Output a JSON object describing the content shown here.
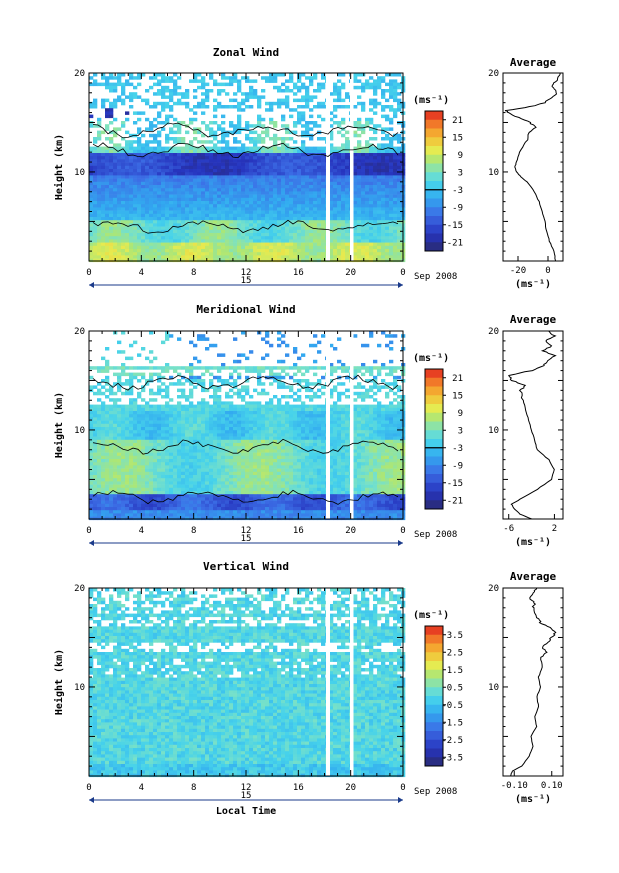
{
  "chart_data": [
    {
      "type": "heatmap",
      "title": "Zonal Wind",
      "xlabel": "",
      "ylabel": "Height (km)",
      "x_ticks": [
        "0",
        "4",
        "8",
        "12",
        "16",
        "20",
        "0"
      ],
      "y_ticks": [
        "10",
        "20"
      ],
      "xlim": [
        0,
        24
      ],
      "ylim": [
        1,
        20
      ],
      "date_label": "15",
      "month_label": "Sep 2008",
      "colorbar": {
        "unit": "(ms⁻¹)",
        "ticks": [
          "21",
          "15",
          "9",
          "3",
          "-3",
          "-9",
          "-15",
          "-21"
        ],
        "range": [
          -24,
          24
        ]
      },
      "zero_contour": true,
      "average": {
        "title": "Average",
        "x_ticks": [
          "-20",
          "0"
        ],
        "xlim": [
          -30,
          10
        ],
        "xlabel": "(ms⁻¹)",
        "y_ticks": [
          "10",
          "20"
        ],
        "profile": [
          [
            1,
            5
          ],
          [
            2,
            4
          ],
          [
            3,
            1
          ],
          [
            4,
            -1
          ],
          [
            5,
            -2
          ],
          [
            6,
            -4
          ],
          [
            7,
            -6
          ],
          [
            8,
            -9
          ],
          [
            9,
            -14
          ],
          [
            9.5,
            -18
          ],
          [
            10,
            -21
          ],
          [
            10.5,
            -22
          ],
          [
            11,
            -21
          ],
          [
            12,
            -19
          ],
          [
            13,
            -15
          ],
          [
            14,
            -12
          ],
          [
            14.5,
            -8
          ],
          [
            15,
            -12
          ],
          [
            15.5,
            -20
          ],
          [
            16,
            -26
          ],
          [
            16.2,
            -28
          ],
          [
            16.6,
            -12
          ],
          [
            17,
            -2
          ],
          [
            17.5,
            2
          ],
          [
            18,
            6
          ],
          [
            18.5,
            3
          ],
          [
            19,
            4
          ],
          [
            19.5,
            7
          ],
          [
            20,
            8
          ]
        ]
      }
    },
    {
      "type": "heatmap",
      "title": "Meridional Wind",
      "xlabel": "",
      "ylabel": "Height (km)",
      "x_ticks": [
        "0",
        "4",
        "8",
        "12",
        "16",
        "20",
        "0"
      ],
      "y_ticks": [
        "10",
        "20"
      ],
      "xlim": [
        0,
        24
      ],
      "ylim": [
        1,
        20
      ],
      "date_label": "15",
      "month_label": "Sep 2008",
      "colorbar": {
        "unit": "(ms⁻¹)",
        "ticks": [
          "21",
          "15",
          "9",
          "3",
          "-3",
          "-9",
          "-15",
          "-21"
        ],
        "range": [
          -24,
          24
        ]
      },
      "zero_contour": true,
      "average": {
        "title": "Average",
        "x_ticks": [
          "-6",
          "2"
        ],
        "xlim": [
          -7,
          3.5
        ],
        "xlabel": "(ms⁻¹)",
        "y_ticks": [
          "10",
          "20"
        ],
        "profile": [
          [
            1,
            -2
          ],
          [
            1.5,
            -4
          ],
          [
            2,
            -5
          ],
          [
            2.5,
            -5.5
          ],
          [
            3,
            -4
          ],
          [
            4,
            -1
          ],
          [
            5,
            1.5
          ],
          [
            6,
            2
          ],
          [
            7,
            1
          ],
          [
            8,
            -1
          ],
          [
            9,
            -1.5
          ],
          [
            10,
            -2
          ],
          [
            11,
            -2.5
          ],
          [
            12,
            -3
          ],
          [
            13,
            -3.5
          ],
          [
            14,
            -4
          ],
          [
            14.5,
            -3
          ],
          [
            15,
            -5.5
          ],
          [
            15.5,
            -6
          ],
          [
            16,
            -2
          ],
          [
            16.5,
            0
          ],
          [
            17,
            1
          ],
          [
            17.5,
            2
          ],
          [
            18,
            0
          ],
          [
            18.5,
            1.5
          ],
          [
            19,
            0.5
          ],
          [
            19.5,
            2
          ],
          [
            20,
            1
          ]
        ]
      }
    },
    {
      "type": "heatmap",
      "title": "Vertical Wind",
      "xlabel": "Local Time",
      "ylabel": "Height (km)",
      "x_ticks": [
        "0",
        "4",
        "8",
        "12",
        "16",
        "20",
        "0"
      ],
      "y_ticks": [
        "10",
        "20"
      ],
      "xlim": [
        0,
        24
      ],
      "ylim": [
        1,
        20
      ],
      "date_label": "15",
      "month_label": "Sep 2008",
      "colorbar": {
        "unit": "(ms⁻¹)",
        "ticks": [
          "3.5",
          "2.5",
          "1.5",
          "0.5",
          "-0.5",
          "-1.5",
          "-2.5",
          "-3.5"
        ],
        "range": [
          -4,
          4
        ]
      },
      "zero_contour": false,
      "average": {
        "title": "Average",
        "x_ticks": [
          "-0.10",
          "0.10"
        ],
        "xlim": [
          -0.16,
          0.16
        ],
        "xlabel": "(ms⁻¹)",
        "y_ticks": [
          "10",
          "20"
        ],
        "profile": [
          [
            1,
            -0.12
          ],
          [
            1.5,
            -0.11
          ],
          [
            2,
            -0.06
          ],
          [
            3,
            -0.02
          ],
          [
            4,
            0.0
          ],
          [
            5,
            -0.01
          ],
          [
            6,
            0.02
          ],
          [
            7,
            0.01
          ],
          [
            8,
            0.03
          ],
          [
            9,
            0.02
          ],
          [
            10,
            0.04
          ],
          [
            11,
            0.03
          ],
          [
            12,
            0.05
          ],
          [
            13,
            0.04
          ],
          [
            13.5,
            0.07
          ],
          [
            14,
            0.05
          ],
          [
            14.5,
            0.08
          ],
          [
            15,
            0.1
          ],
          [
            15.5,
            0.12
          ],
          [
            16,
            0.09
          ],
          [
            16.5,
            0.04
          ],
          [
            17,
            0.02
          ],
          [
            18,
            0.0
          ],
          [
            18.5,
            0.01
          ],
          [
            19,
            -0.02
          ],
          [
            19.5,
            0.0
          ],
          [
            20,
            0.02
          ]
        ]
      }
    }
  ]
}
